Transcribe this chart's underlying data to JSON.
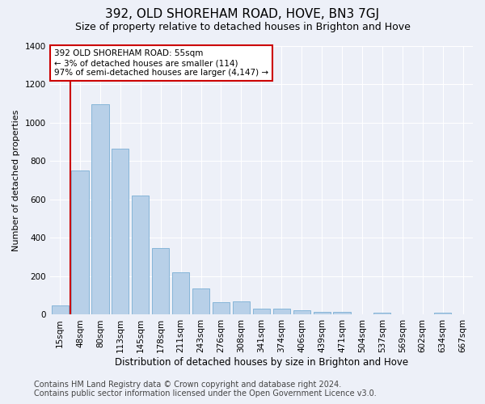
{
  "title": "392, OLD SHOREHAM ROAD, HOVE, BN3 7GJ",
  "subtitle": "Size of property relative to detached houses in Brighton and Hove",
  "xlabel": "Distribution of detached houses by size in Brighton and Hove",
  "ylabel": "Number of detached properties",
  "footer_line1": "Contains HM Land Registry data © Crown copyright and database right 2024.",
  "footer_line2": "Contains public sector information licensed under the Open Government Licence v3.0.",
  "categories": [
    "15sqm",
    "48sqm",
    "80sqm",
    "113sqm",
    "145sqm",
    "178sqm",
    "211sqm",
    "243sqm",
    "276sqm",
    "308sqm",
    "341sqm",
    "374sqm",
    "406sqm",
    "439sqm",
    "471sqm",
    "504sqm",
    "537sqm",
    "569sqm",
    "602sqm",
    "634sqm",
    "667sqm"
  ],
  "values": [
    50,
    750,
    1095,
    865,
    620,
    345,
    222,
    135,
    65,
    70,
    30,
    30,
    22,
    15,
    15,
    0,
    12,
    0,
    0,
    12,
    0
  ],
  "bar_color": "#b8d0e8",
  "bar_edge_color": "#7aafd4",
  "red_line_x": 0.5,
  "annotation_box_text": "392 OLD SHOREHAM ROAD: 55sqm\n← 3% of detached houses are smaller (114)\n97% of semi-detached houses are larger (4,147) →",
  "ylim": [
    0,
    1400
  ],
  "yticks": [
    0,
    200,
    400,
    600,
    800,
    1000,
    1200,
    1400
  ],
  "background_color": "#edf0f8",
  "grid_color": "#ffffff",
  "title_fontsize": 11,
  "subtitle_fontsize": 9,
  "axis_label_fontsize": 8.5,
  "ylabel_fontsize": 8,
  "tick_fontsize": 7.5,
  "footer_fontsize": 7
}
